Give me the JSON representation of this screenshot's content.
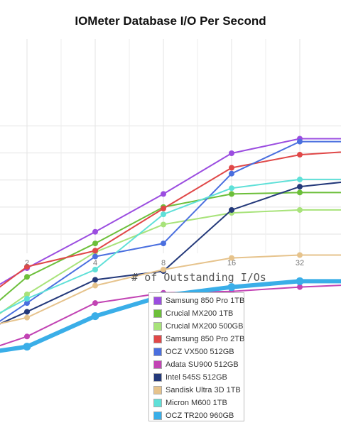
{
  "chart_data": {
    "type": "line",
    "title": "IOMeter Database I/O Per Second",
    "xlabel": "# of Outstanding I/Os",
    "ylabel": "",
    "x_tick_labels": [
      "2",
      "4",
      "8",
      "16",
      "32"
    ],
    "grid": true,
    "legend_position": "bottom",
    "series": [
      {
        "name": "Samsung 850 Pro 1TB",
        "color": "#9b4de0",
        "points": [
          [
            1,
            -55
          ],
          [
            2,
            -39
          ],
          [
            4,
            -14
          ],
          [
            8,
            12
          ],
          [
            16,
            40
          ],
          [
            32,
            50
          ],
          [
            64,
            50
          ]
        ]
      },
      {
        "name": "Crucial MX200 1TB",
        "color": "#6cbf3a",
        "points": [
          [
            1,
            -68
          ],
          [
            2,
            -45
          ],
          [
            4,
            -22
          ],
          [
            8,
            3
          ],
          [
            16,
            12
          ],
          [
            32,
            13
          ],
          [
            64,
            13
          ]
        ]
      },
      {
        "name": "Crucial MX200 500GB",
        "color": "#a8e37a",
        "points": [
          [
            1,
            -76
          ],
          [
            2,
            -57
          ],
          [
            4,
            -28
          ],
          [
            8,
            -9
          ],
          [
            16,
            -1
          ],
          [
            32,
            1
          ],
          [
            64,
            1
          ]
        ]
      },
      {
        "name": "Samsung 850 Pro 2TB",
        "color": "#e04848",
        "points": [
          [
            1,
            -58
          ],
          [
            2,
            -38
          ],
          [
            4,
            -27
          ],
          [
            8,
            2
          ],
          [
            16,
            30
          ],
          [
            32,
            39
          ],
          [
            64,
            42
          ]
        ]
      },
      {
        "name": "OCZ VX500 512GB",
        "color": "#4a6fdf",
        "points": [
          [
            1,
            -81
          ],
          [
            2,
            -63
          ],
          [
            4,
            -31
          ],
          [
            8,
            -22
          ],
          [
            16,
            26
          ],
          [
            32,
            48
          ],
          [
            64,
            48
          ]
        ]
      },
      {
        "name": "Adata SU900 512GB",
        "color": "#c244b4",
        "points": [
          [
            1,
            -95
          ],
          [
            2,
            -86
          ],
          [
            4,
            -63
          ],
          [
            8,
            -56
          ],
          [
            16,
            -55
          ],
          [
            32,
            -52
          ],
          [
            64,
            -50
          ]
        ]
      },
      {
        "name": "Intel 545S 512GB",
        "color": "#24397a",
        "points": [
          [
            1,
            -81
          ],
          [
            2,
            -69
          ],
          [
            4,
            -47
          ],
          [
            8,
            -41
          ],
          [
            16,
            1
          ],
          [
            32,
            17
          ],
          [
            64,
            22
          ]
        ]
      },
      {
        "name": "Sandisk Ultra 3D 1TB",
        "color": "#e6c38c",
        "points": [
          [
            1,
            -79
          ],
          [
            2,
            -73
          ],
          [
            4,
            -51
          ],
          [
            8,
            -40
          ],
          [
            16,
            -32
          ],
          [
            32,
            -30
          ],
          [
            64,
            -30
          ]
        ]
      },
      {
        "name": "Micron M600 1TB",
        "color": "#5fe0d8",
        "points": [
          [
            1,
            -74
          ],
          [
            2,
            -60
          ],
          [
            4,
            -40
          ],
          [
            8,
            -2
          ],
          [
            16,
            16
          ],
          [
            32,
            22
          ],
          [
            64,
            22
          ]
        ]
      },
      {
        "name": "OCZ TR200 960GB",
        "color": "#3aaee8",
        "points": [
          [
            1,
            -97
          ],
          [
            2,
            -93
          ],
          [
            4,
            -72
          ],
          [
            8,
            -58
          ],
          [
            16,
            -52
          ],
          [
            32,
            -48
          ],
          [
            64,
            -48
          ]
        ]
      }
    ]
  }
}
